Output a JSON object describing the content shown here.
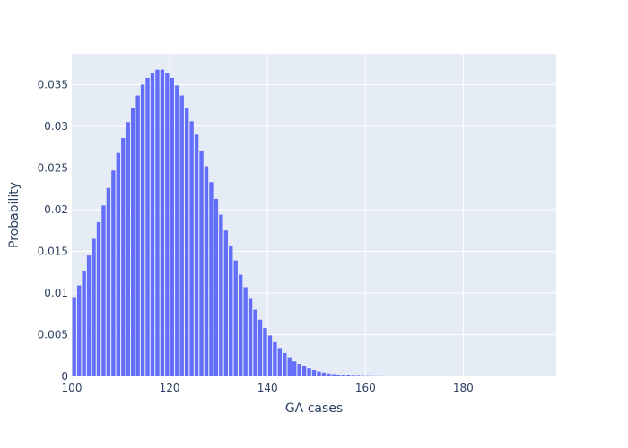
{
  "chart_data": {
    "type": "bar",
    "xlabel": "GA cases",
    "ylabel": "Probability",
    "xlim": [
      100,
      199
    ],
    "ylim": [
      0,
      0.0387
    ],
    "grid": true,
    "legend": "none",
    "x_ticks": [
      100,
      120,
      140,
      160,
      180
    ],
    "y_ticks": [
      0,
      0.005,
      0.01,
      0.015,
      0.02,
      0.025,
      0.03,
      0.035
    ],
    "y_tick_labels": [
      "0",
      "0.005",
      "0.01",
      "0.015",
      "0.02",
      "0.025",
      "0.03",
      "0.035"
    ],
    "bar_color": "#636efa",
    "plot_background": "#e5ecf6",
    "x": [
      100,
      101,
      102,
      103,
      104,
      105,
      106,
      107,
      108,
      109,
      110,
      111,
      112,
      113,
      114,
      115,
      116,
      117,
      118,
      119,
      120,
      121,
      122,
      123,
      124,
      125,
      126,
      127,
      128,
      129,
      130,
      131,
      132,
      133,
      134,
      135,
      136,
      137,
      138,
      139,
      140,
      141,
      142,
      143,
      144,
      145,
      146,
      147,
      148,
      149,
      150,
      151,
      152,
      153,
      154,
      155,
      156,
      157,
      158,
      159,
      160,
      161,
      162,
      163,
      164,
      165,
      166,
      167,
      168,
      169,
      170,
      171,
      172,
      173,
      174,
      175,
      176,
      177,
      178,
      179,
      180,
      181,
      182,
      183,
      184,
      185,
      186,
      187,
      188,
      189,
      190,
      191,
      192,
      193,
      194,
      195,
      196,
      197,
      198
    ],
    "values": [
      0.0094,
      0.0109,
      0.0126,
      0.0145,
      0.0165,
      0.0185,
      0.0205,
      0.0226,
      0.0247,
      0.0268,
      0.0286,
      0.0305,
      0.0322,
      0.0337,
      0.035,
      0.0358,
      0.0364,
      0.0368,
      0.0368,
      0.0364,
      0.0358,
      0.0349,
      0.0337,
      0.0322,
      0.0306,
      0.029,
      0.0271,
      0.0252,
      0.0233,
      0.0213,
      0.0194,
      0.0175,
      0.0157,
      0.0139,
      0.0122,
      0.0107,
      0.0093,
      0.008,
      0.0068,
      0.0058,
      0.0049,
      0.0041,
      0.0034,
      0.0028,
      0.0023,
      0.0018,
      0.0015,
      0.0012,
      0.00095,
      0.00075,
      0.00058,
      0.00045,
      0.00035,
      0.00027,
      0.0002,
      0.00015,
      0.00011,
      8e-05,
      6e-05,
      4e-05,
      3e-05,
      2e-05,
      1.5e-05,
      1e-05,
      7e-06,
      5e-06,
      3e-06,
      2e-06,
      1.5e-06,
      1e-06,
      7e-07,
      5e-07,
      3e-07,
      2e-07,
      2e-07,
      1e-07,
      1e-07,
      5e-08,
      3e-08,
      2e-08,
      1e-08,
      1e-08,
      5e-09,
      3e-09,
      2e-09,
      1e-09,
      1e-09,
      5e-10,
      3e-10,
      2e-10,
      1e-10,
      1e-10,
      5e-11,
      3e-11,
      2e-11,
      1e-11,
      1e-11,
      5e-12,
      3e-12
    ]
  }
}
